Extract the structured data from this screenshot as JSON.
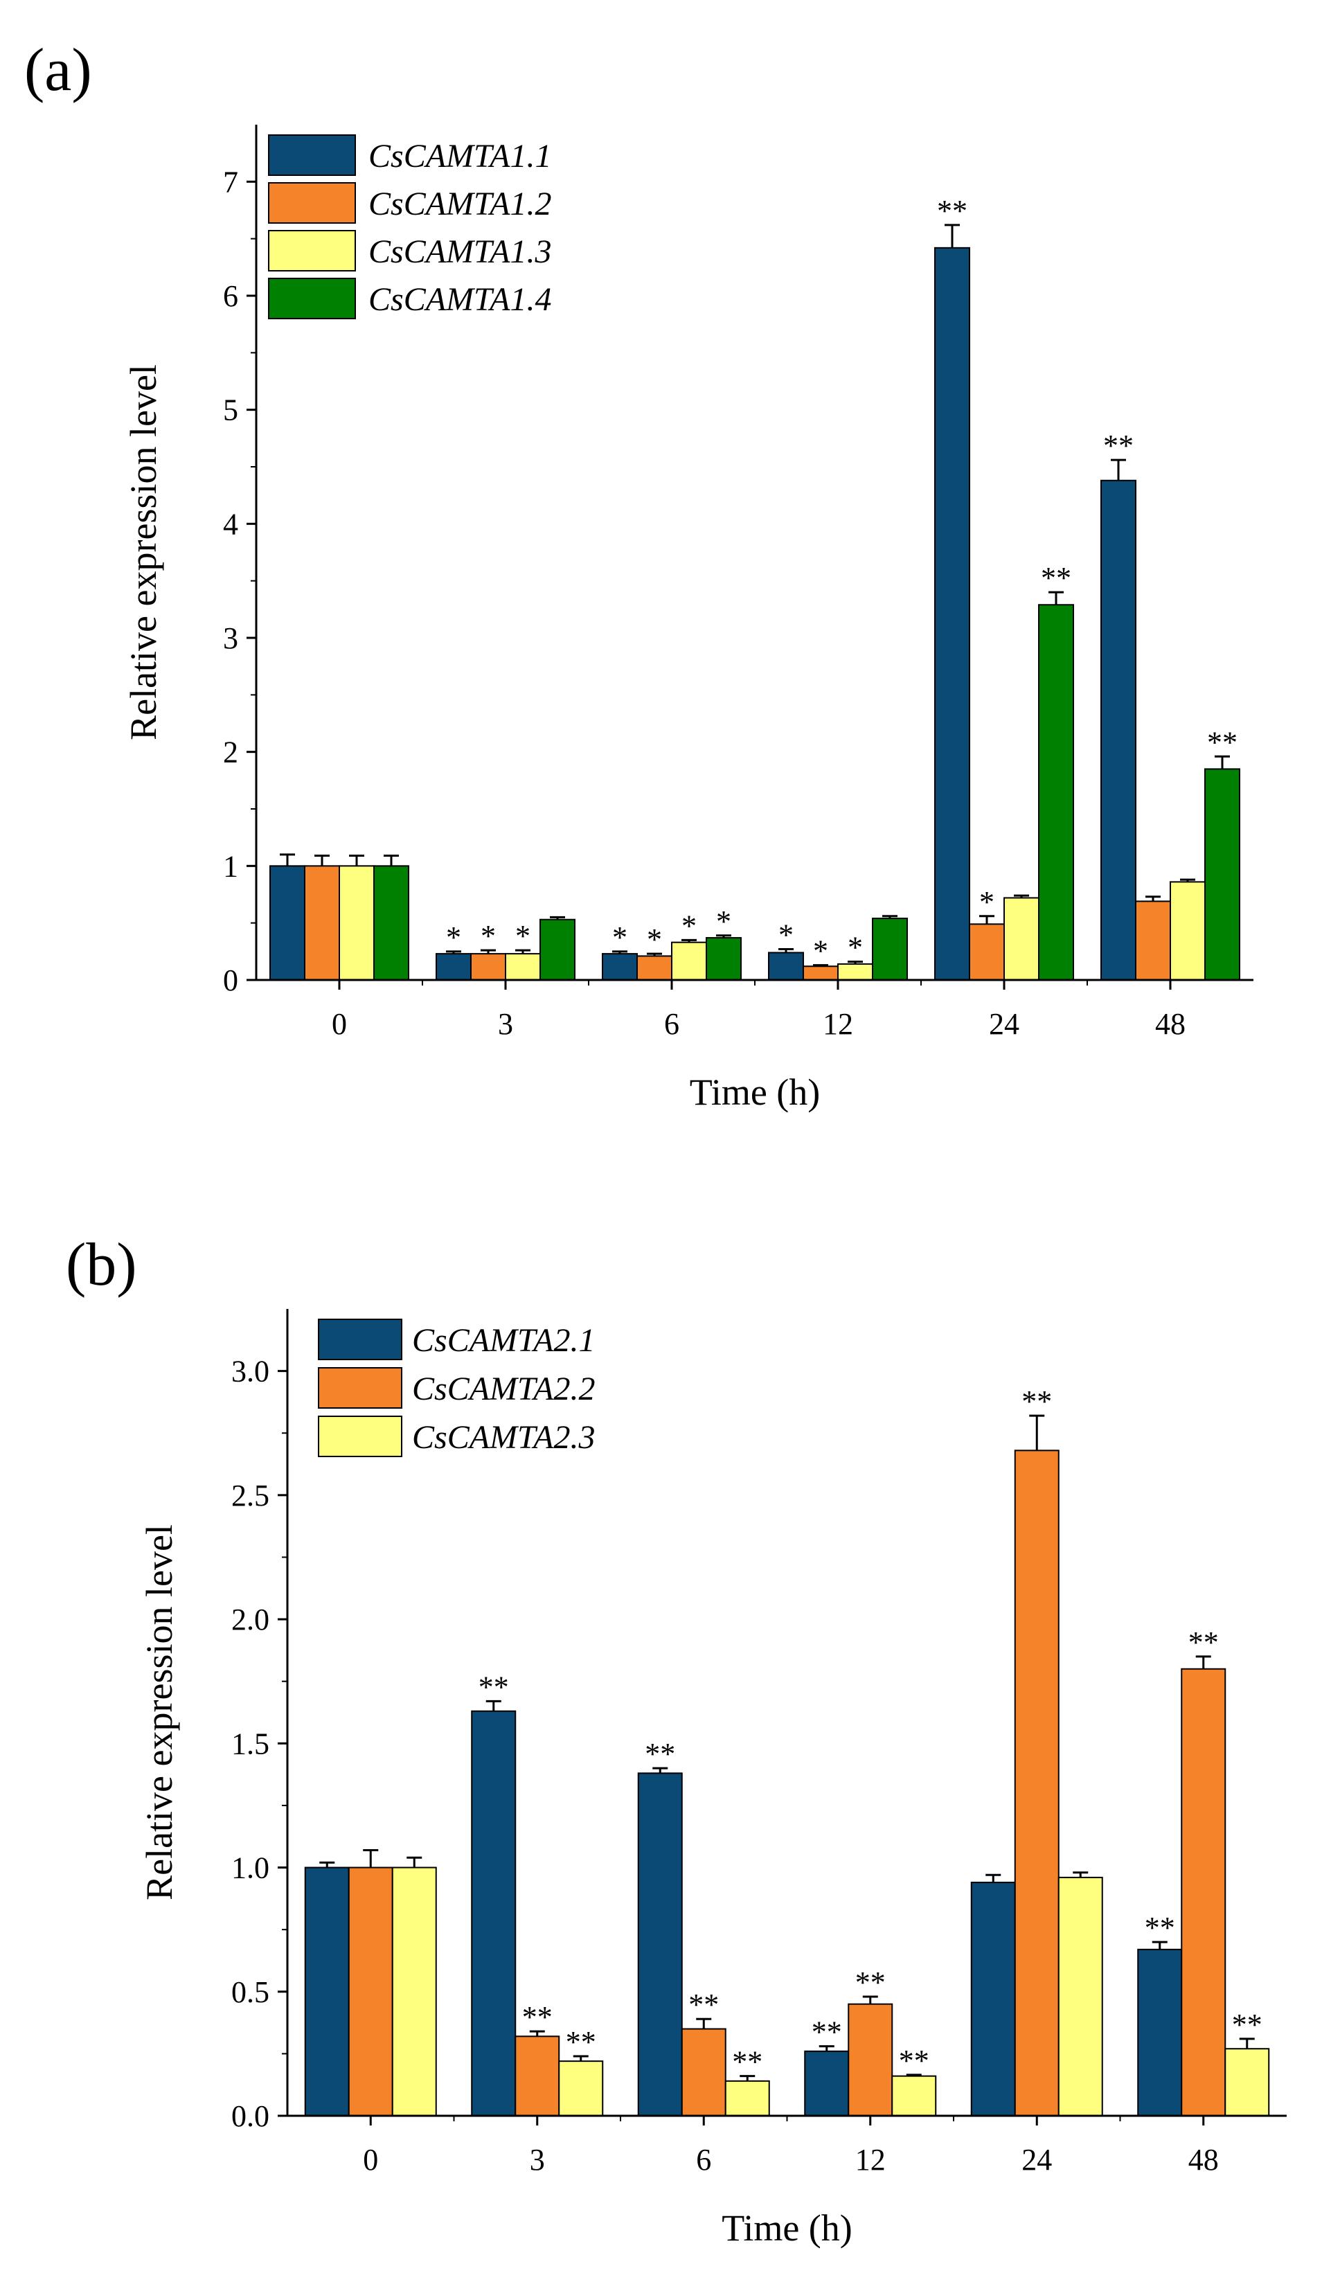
{
  "chart_data": [
    {
      "panel_label": "(a)",
      "type": "bar",
      "xlabel": "Time (h)",
      "ylabel": "Relative expression level",
      "categories": [
        "0",
        "3",
        "6",
        "12",
        "24",
        "48"
      ],
      "ylim": [
        0,
        7.5
      ],
      "yticks": [
        "0",
        "1",
        "2",
        "3",
        "4",
        "5",
        "6",
        "7"
      ],
      "legend_position": "top-left",
      "grid": false,
      "series": [
        {
          "name": "CsCAMTA1.1",
          "color": "#0a4a74",
          "values": [
            1.0,
            0.23,
            0.23,
            0.24,
            6.42,
            4.38
          ],
          "errors": [
            0.1,
            0.02,
            0.02,
            0.03,
            0.2,
            0.18
          ],
          "significance": [
            "",
            "*",
            "*",
            "*",
            "**",
            "**"
          ]
        },
        {
          "name": "CsCAMTA1.2",
          "color": "#f5832a",
          "values": [
            1.0,
            0.23,
            0.21,
            0.12,
            0.49,
            0.69
          ],
          "errors": [
            0.09,
            0.03,
            0.02,
            0.01,
            0.07,
            0.04
          ],
          "significance": [
            "",
            "*",
            "*",
            "*",
            "*",
            ""
          ]
        },
        {
          "name": "CsCAMTA1.3",
          "color": "#ffff7f",
          "values": [
            1.0,
            0.23,
            0.33,
            0.14,
            0.72,
            0.86
          ],
          "errors": [
            0.09,
            0.03,
            0.02,
            0.02,
            0.02,
            0.02
          ],
          "significance": [
            "",
            "*",
            "*",
            "*",
            "",
            ""
          ]
        },
        {
          "name": "CsCAMTA1.4",
          "color": "#008000",
          "values": [
            1.0,
            0.53,
            0.37,
            0.54,
            3.29,
            1.85
          ],
          "errors": [
            0.09,
            0.02,
            0.02,
            0.02,
            0.11,
            0.11
          ],
          "significance": [
            "",
            "",
            "*",
            "",
            "**",
            "**"
          ]
        }
      ]
    },
    {
      "panel_label": "(b)",
      "type": "bar",
      "xlabel": "Time (h)",
      "ylabel": "Relative expression level",
      "categories": [
        "0",
        "3",
        "6",
        "12",
        "24",
        "48"
      ],
      "ylim": [
        0,
        3.25
      ],
      "yticks": [
        "0.0",
        "0.5",
        "1.0",
        "1.5",
        "2.0",
        "2.5",
        "3.0"
      ],
      "legend_position": "top-left",
      "grid": false,
      "series": [
        {
          "name": "CsCAMTA2.1",
          "color": "#0a4a74",
          "values": [
            1.0,
            1.63,
            1.38,
            0.26,
            0.94,
            0.67
          ],
          "errors": [
            0.02,
            0.04,
            0.02,
            0.02,
            0.03,
            0.03
          ],
          "significance": [
            "",
            "**",
            "**",
            "**",
            "",
            "**"
          ]
        },
        {
          "name": "CsCAMTA2.2",
          "color": "#f5832a",
          "values": [
            1.0,
            0.32,
            0.35,
            0.45,
            2.68,
            1.8
          ],
          "errors": [
            0.07,
            0.02,
            0.04,
            0.03,
            0.14,
            0.05
          ],
          "significance": [
            "",
            "**",
            "**",
            "**",
            "**",
            "**"
          ]
        },
        {
          "name": "CsCAMTA2.3",
          "color": "#ffff7f",
          "values": [
            1.0,
            0.22,
            0.14,
            0.16,
            0.96,
            0.27
          ],
          "errors": [
            0.04,
            0.02,
            0.02,
            0.005,
            0.02,
            0.04
          ],
          "significance": [
            "",
            "**",
            "**",
            "**",
            "",
            "**"
          ]
        }
      ]
    }
  ]
}
